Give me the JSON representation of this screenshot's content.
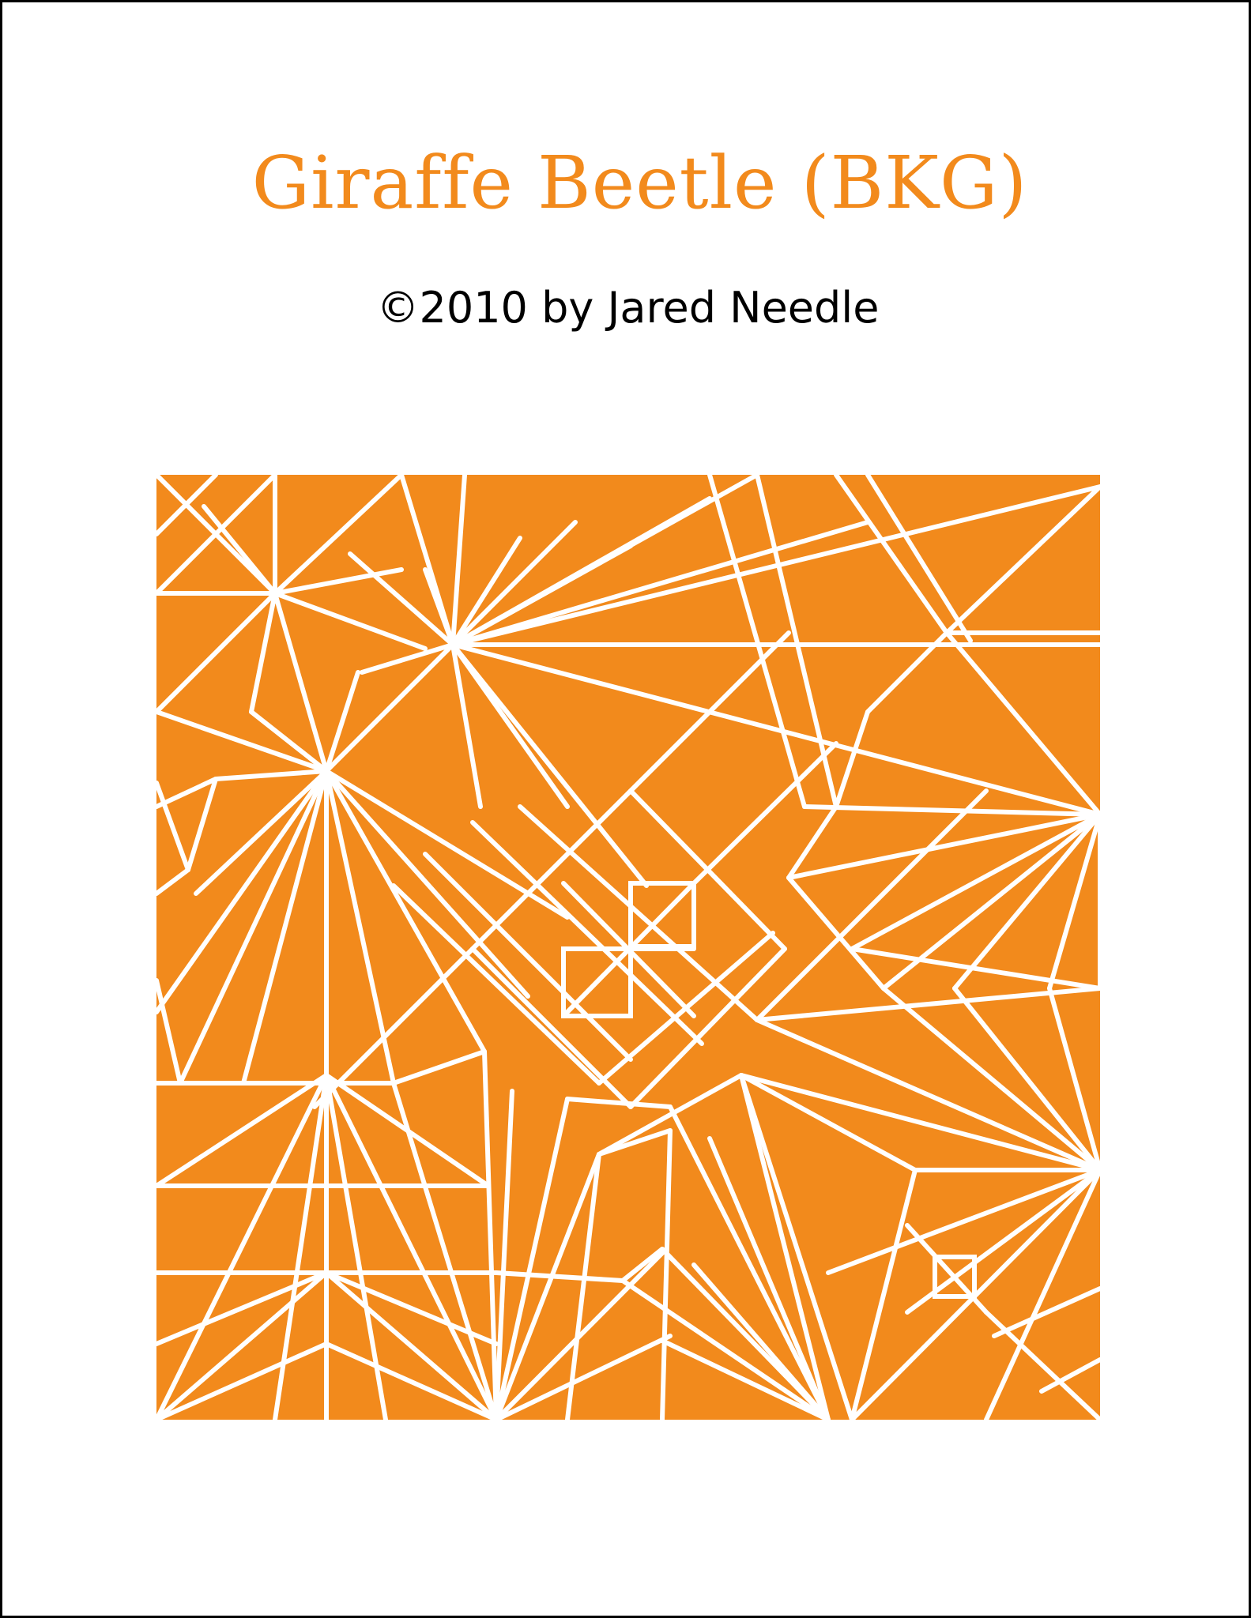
{
  "title": "Giraffe Beetle (BKG)",
  "copyright": "©2010 by Jared Needle",
  "colors": {
    "accent": "#f28a1c",
    "paper": "#ffffff",
    "text": "#000000",
    "crease": "#ffffff"
  }
}
